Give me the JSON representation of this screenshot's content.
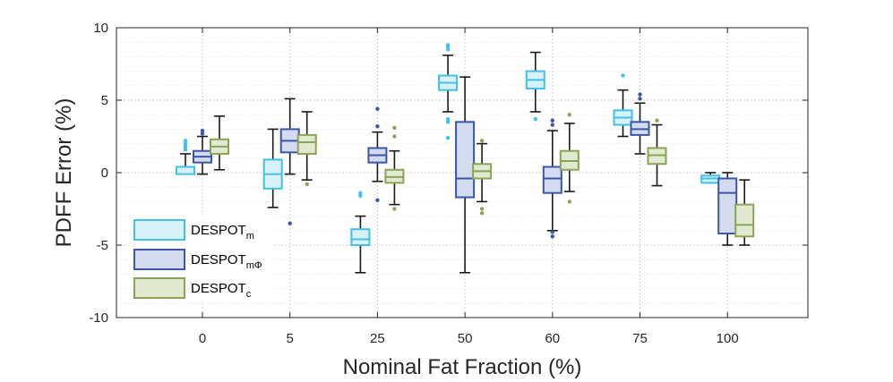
{
  "chart_data": {
    "type": "box",
    "title": "",
    "xlabel": "Nominal Fat Fraction (%)",
    "ylabel": "PDFF Error (%)",
    "ylim": [
      -10,
      10
    ],
    "yticks": [
      -10,
      -5,
      0,
      5,
      10
    ],
    "grid": true,
    "legend_position": "lower-left",
    "categories": [
      "0",
      "5",
      "25",
      "50",
      "60",
      "75",
      "100"
    ],
    "series": [
      {
        "name": "DESPOT",
        "name_sub": "m",
        "edge_color": "#3fc1ea",
        "fill_color": "#d9f1fa",
        "outlier_color": "#3fc1ea",
        "boxes": [
          {
            "whisker_low": -0.1,
            "q1": -0.1,
            "median": 0.4,
            "q3": 0.4,
            "whisker_high": 1.3,
            "outliers": [
              1.6,
              1.8,
              2.0,
              2.2
            ]
          },
          {
            "whisker_low": -2.4,
            "q1": -1.1,
            "median": -0.1,
            "q3": 0.9,
            "whisker_high": 3.0,
            "outliers": []
          },
          {
            "whisker_low": -6.9,
            "q1": -5.0,
            "median": -4.6,
            "q3": -3.9,
            "whisker_high": -3.0,
            "outliers": [
              -1.4,
              -1.6
            ]
          },
          {
            "whisker_low": 4.2,
            "q1": 5.7,
            "median": 6.2,
            "q3": 6.7,
            "whisker_high": 8.1,
            "outliers": [
              3.7,
              3.5,
              2.4,
              8.5,
              8.7,
              8.8
            ]
          },
          {
            "whisker_low": 4.2,
            "q1": 5.8,
            "median": 6.4,
            "q3": 7.0,
            "whisker_high": 8.3,
            "outliers": [
              3.7
            ]
          },
          {
            "whisker_low": 2.5,
            "q1": 3.3,
            "median": 3.8,
            "q3": 4.3,
            "whisker_high": 5.7,
            "outliers": [
              6.7
            ]
          },
          {
            "whisker_low": -0.7,
            "q1": -0.7,
            "median": -0.4,
            "q3": -0.2,
            "whisker_high": 0.0,
            "outliers": []
          }
        ]
      },
      {
        "name": "DESPOT",
        "name_sub": "mΦ",
        "edge_color": "#3a56a8",
        "fill_color": "#d4dbee",
        "outlier_color": "#3a56a8",
        "boxes": [
          {
            "whisker_low": -0.1,
            "q1": 0.7,
            "median": 1.1,
            "q3": 1.5,
            "whisker_high": 2.5,
            "outliers": [
              2.7,
              2.9
            ]
          },
          {
            "whisker_low": -0.1,
            "q1": 1.4,
            "median": 2.2,
            "q3": 3.0,
            "whisker_high": 5.1,
            "outliers": [
              -3.5
            ]
          },
          {
            "whisker_low": -0.6,
            "q1": 0.7,
            "median": 1.2,
            "q3": 1.7,
            "whisker_high": 2.8,
            "outliers": [
              -1.9,
              3.2,
              4.4
            ]
          },
          {
            "whisker_low": -6.9,
            "q1": -1.7,
            "median": -0.4,
            "q3": 3.5,
            "whisker_high": 6.6,
            "outliers": []
          },
          {
            "whisker_low": -4.0,
            "q1": -1.4,
            "median": -0.4,
            "q3": 0.4,
            "whisker_high": 2.9,
            "outliers": [
              -4.1,
              -4.4,
              3.3,
              3.6
            ]
          },
          {
            "whisker_low": 1.3,
            "q1": 2.6,
            "median": 3.0,
            "q3": 3.5,
            "whisker_high": 4.8,
            "outliers": [
              5.1,
              5.4
            ]
          },
          {
            "whisker_low": -5.0,
            "q1": -4.2,
            "median": -1.4,
            "q3": -0.4,
            "whisker_high": 0.0,
            "outliers": []
          }
        ]
      },
      {
        "name": "DESPOT",
        "name_sub": "c",
        "edge_color": "#8aa356",
        "fill_color": "#e2e9d1",
        "outlier_color": "#8aa356",
        "boxes": [
          {
            "whisker_low": 0.2,
            "q1": 1.3,
            "median": 1.8,
            "q3": 2.3,
            "whisker_high": 3.9,
            "outliers": []
          },
          {
            "whisker_low": -0.5,
            "q1": 1.3,
            "median": 2.1,
            "q3": 2.6,
            "whisker_high": 4.2,
            "outliers": [
              -0.8
            ]
          },
          {
            "whisker_low": -2.2,
            "q1": -0.7,
            "median": -0.3,
            "q3": 0.2,
            "whisker_high": 1.5,
            "outliers": [
              -2.5,
              2.5,
              3.1
            ]
          },
          {
            "whisker_low": -2.0,
            "q1": -0.4,
            "median": 0.1,
            "q3": 0.6,
            "whisker_high": 2.0,
            "outliers": [
              -2.5,
              -2.8,
              2.2
            ]
          },
          {
            "whisker_low": -1.3,
            "q1": 0.2,
            "median": 0.8,
            "q3": 1.5,
            "whisker_high": 3.4,
            "outliers": [
              -2.0,
              4.0
            ]
          },
          {
            "whisker_low": -0.9,
            "q1": 0.6,
            "median": 1.2,
            "q3": 1.7,
            "whisker_high": 3.3,
            "outliers": [
              3.6
            ]
          },
          {
            "whisker_low": -5.0,
            "q1": -4.4,
            "median": -3.6,
            "q3": -2.2,
            "whisker_high": -0.5,
            "outliers": []
          }
        ]
      }
    ]
  }
}
